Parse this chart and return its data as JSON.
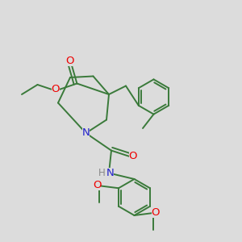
{
  "bg_color": "#dcdcdc",
  "bond_color": "#3a7a3a",
  "bond_width": 1.4,
  "atom_colors": {
    "O": "#ee0000",
    "N": "#2222cc",
    "H": "#888888",
    "C": "#3a7a3a"
  },
  "font_size": 8.5
}
